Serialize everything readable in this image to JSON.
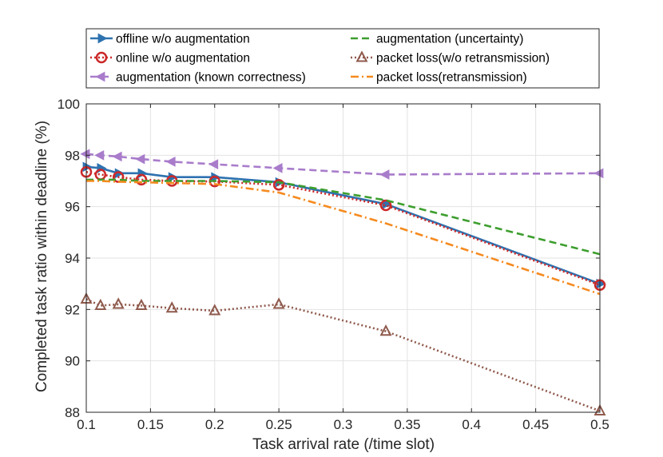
{
  "chart_data": {
    "type": "line",
    "title": "",
    "xlabel": "Task arrival rate (/time slot)",
    "ylabel": "Completed task ratio within deadline (%)",
    "xlim": [
      0.1,
      0.5
    ],
    "ylim": [
      88,
      100
    ],
    "xticks": [
      0.1,
      0.15,
      0.2,
      0.25,
      0.3,
      0.35,
      0.4,
      0.45,
      0.5
    ],
    "yticks": [
      88,
      90,
      92,
      94,
      96,
      98,
      100
    ],
    "xtick_labels": [
      "0.1",
      "0.15",
      "0.2",
      "0.25",
      "0.3",
      "0.35",
      "0.4",
      "0.45",
      "0.5"
    ],
    "ytick_labels": [
      "88",
      "90",
      "92",
      "94",
      "96",
      "98",
      "100"
    ],
    "grid": true,
    "legend_position": "top (above plot, two columns)",
    "series": [
      {
        "name": "offline w/o augmentation",
        "color": "#2e72b0",
        "line": "solid",
        "marker": "triangle-right",
        "x": [
          0.1,
          0.1111,
          0.125,
          0.1429,
          0.1667,
          0.2,
          0.25,
          0.3333,
          0.5
        ],
        "y": [
          97.55,
          97.5,
          97.3,
          97.3,
          97.15,
          97.15,
          96.95,
          96.1,
          93.0
        ]
      },
      {
        "name": "online w/o augmentation",
        "color": "#cc2929",
        "line": "dotted",
        "marker": "circle",
        "x": [
          0.1,
          0.1111,
          0.125,
          0.1429,
          0.1667,
          0.2,
          0.25,
          0.3333,
          0.5
        ],
        "y": [
          97.35,
          97.25,
          97.15,
          97.05,
          97.0,
          96.98,
          96.85,
          96.05,
          92.95
        ]
      },
      {
        "name": "augmentation (known correctness)",
        "color": "#a97ccb",
        "line": "dashed",
        "marker": "triangle-left",
        "x": [
          0.1,
          0.1111,
          0.125,
          0.1429,
          0.1667,
          0.2,
          0.25,
          0.3333,
          0.5
        ],
        "y": [
          98.05,
          98.0,
          97.95,
          97.85,
          97.75,
          97.65,
          97.5,
          97.25,
          97.3
        ]
      },
      {
        "name": "augmentation (uncertainty)",
        "color": "#3d9e2e",
        "line": "dashed",
        "marker": "none",
        "x": [
          0.1,
          0.1111,
          0.125,
          0.1429,
          0.1667,
          0.2,
          0.25,
          0.3333,
          0.5
        ],
        "y": [
          97.05,
          97.05,
          97.05,
          97.0,
          97.0,
          97.0,
          96.95,
          96.25,
          94.15
        ]
      },
      {
        "name": "packet loss(w/o retransmission)",
        "color": "#8f5a4d",
        "line": "dotted",
        "marker": "triangle-up",
        "x": [
          0.1,
          0.1111,
          0.125,
          0.1429,
          0.1667,
          0.2,
          0.25,
          0.3333,
          0.5
        ],
        "y": [
          92.4,
          92.15,
          92.2,
          92.15,
          92.05,
          91.95,
          92.2,
          91.15,
          88.05
        ]
      },
      {
        "name": "packet loss(retransmission)",
        "color": "#f58a1f",
        "line": "dashdot",
        "marker": "none",
        "x": [
          0.1,
          0.1111,
          0.125,
          0.1429,
          0.1667,
          0.2,
          0.25,
          0.3333,
          0.5
        ],
        "y": [
          97.0,
          97.0,
          96.97,
          96.95,
          96.92,
          96.88,
          96.55,
          95.35,
          92.6
        ]
      }
    ]
  }
}
